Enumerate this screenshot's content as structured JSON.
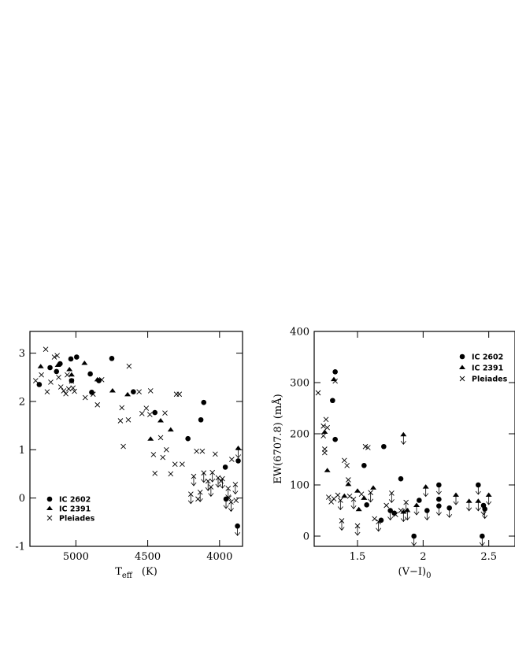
{
  "chart_data": [
    {
      "type": "scatter",
      "title": "",
      "xlabel": "T",
      "xlabel_sub": "eff",
      "xlabel_unit": "(K)",
      "ylabel": "",
      "xlim": [
        5320,
        3840
      ],
      "ylim": [
        -1,
        3.45
      ],
      "xticks": [
        5000,
        4500,
        4000
      ],
      "yticks": [
        -1,
        0,
        1,
        2,
        3
      ],
      "grid": false,
      "legend_position": "lower-left",
      "series": [
        {
          "name": "IC 2602",
          "marker": "circle",
          "points": [
            [
              5255,
              2.35
            ],
            [
              5180,
              2.7
            ],
            [
              5135,
              2.62
            ],
            [
              5110,
              2.78
            ],
            [
              5035,
              2.88
            ],
            [
              4995,
              2.92
            ],
            [
              5030,
              2.43
            ],
            [
              4900,
              2.57
            ],
            [
              4890,
              2.19
            ],
            [
              4840,
              2.43
            ],
            [
              4750,
              2.89
            ],
            [
              4600,
              2.2
            ],
            [
              4450,
              1.77
            ],
            [
              4220,
              1.23
            ],
            [
              4130,
              1.62
            ],
            [
              4110,
              1.98
            ],
            [
              3960,
              0.64
            ],
            [
              3955,
              -0.02
            ],
            [
              3870,
              0.77
            ],
            [
              3875,
              -0.58
            ]
          ],
          "upper_limit": [
            false,
            false,
            false,
            false,
            false,
            false,
            false,
            false,
            false,
            false,
            false,
            false,
            false,
            false,
            false,
            false,
            false,
            true,
            false,
            true
          ]
        },
        {
          "name": "IC 2391",
          "marker": "triangle",
          "points": [
            [
              5245,
              2.72
            ],
            [
              5125,
              2.75
            ],
            [
              5045,
              2.66
            ],
            [
              5030,
              2.55
            ],
            [
              4940,
              2.79
            ],
            [
              4850,
              2.45
            ],
            [
              4745,
              2.22
            ],
            [
              4640,
              2.14
            ],
            [
              4480,
              1.22
            ],
            [
              4410,
              1.6
            ],
            [
              4340,
              1.41
            ],
            [
              3870,
              1.03
            ]
          ],
          "upper_limit": [
            false,
            false,
            false,
            false,
            false,
            false,
            false,
            false,
            false,
            false,
            false,
            true
          ]
        },
        {
          "name": "Pleiades",
          "marker": "cross",
          "points": [
            [
              5280,
              2.43
            ],
            [
              5240,
              2.55
            ],
            [
              5210,
              3.08
            ],
            [
              5200,
              2.2
            ],
            [
              5175,
              2.4
            ],
            [
              5150,
              2.92
            ],
            [
              5130,
              2.95
            ],
            [
              5120,
              2.5
            ],
            [
              5105,
              2.3
            ],
            [
              5085,
              2.22
            ],
            [
              5070,
              2.16
            ],
            [
              5060,
              2.55
            ],
            [
              5050,
              2.26
            ],
            [
              5030,
              2.42
            ],
            [
              5020,
              2.28
            ],
            [
              5010,
              2.21
            ],
            [
              4935,
              2.08
            ],
            [
              4880,
              2.15
            ],
            [
              4850,
              1.93
            ],
            [
              4820,
              2.45
            ],
            [
              4680,
              1.87
            ],
            [
              4670,
              1.07
            ],
            [
              4635,
              1.62
            ],
            [
              4690,
              1.6
            ],
            [
              4630,
              2.73
            ],
            [
              4560,
              2.2
            ],
            [
              4540,
              1.75
            ],
            [
              4510,
              1.86
            ],
            [
              4485,
              1.73
            ],
            [
              4480,
              2.22
            ],
            [
              4460,
              0.9
            ],
            [
              4450,
              0.51
            ],
            [
              4410,
              1.25
            ],
            [
              4395,
              0.84
            ],
            [
              4380,
              1.76
            ],
            [
              4370,
              1.0
            ],
            [
              4340,
              0.5
            ],
            [
              4310,
              0.7
            ],
            [
              4300,
              2.15
            ],
            [
              4280,
              2.15
            ],
            [
              4260,
              0.7
            ],
            [
              4200,
              0.08
            ],
            [
              4180,
              0.45
            ],
            [
              4160,
              0.97
            ],
            [
              4150,
              -0.02
            ],
            [
              4135,
              0.12
            ],
            [
              4120,
              0.97
            ],
            [
              4110,
              0.52
            ],
            [
              4080,
              0.35
            ],
            [
              4060,
              0.23
            ],
            [
              4050,
              0.53
            ],
            [
              4030,
              0.91
            ],
            [
              4010,
              0.42
            ],
            [
              3980,
              0.4
            ],
            [
              3940,
              0.2
            ],
            [
              3990,
              0.35
            ],
            [
              3935,
              0.0
            ],
            [
              3920,
              -0.08
            ],
            [
              3915,
              0.8
            ],
            [
              3890,
              0.28
            ],
            [
              3885,
              -0.05
            ]
          ],
          "upper_limit": [
            false,
            false,
            false,
            false,
            false,
            false,
            false,
            false,
            false,
            false,
            false,
            false,
            false,
            false,
            false,
            false,
            false,
            false,
            false,
            false,
            false,
            false,
            false,
            false,
            false,
            false,
            false,
            false,
            false,
            false,
            false,
            false,
            false,
            false,
            false,
            false,
            false,
            false,
            false,
            false,
            false,
            true,
            true,
            false,
            false,
            true,
            false,
            true,
            true,
            true,
            true,
            false,
            true,
            true,
            true,
            false,
            false,
            true,
            false,
            true,
            false
          ]
        }
      ]
    },
    {
      "type": "scatter",
      "title": "",
      "xlabel": "(V−I)",
      "xlabel_sub": "0",
      "ylabel": "EW(6707.8)  (mÅ)",
      "xlim": [
        1.17,
        2.7
      ],
      "ylim": [
        -20,
        400
      ],
      "xticks": [
        1.5,
        2,
        2.5
      ],
      "xtick_labels": [
        "1.5",
        "2",
        "2.5"
      ],
      "yticks": [
        0,
        100,
        200,
        300,
        400
      ],
      "grid": false,
      "legend_position": "top-right",
      "series": [
        {
          "name": "IC 2602",
          "marker": "circle",
          "points": [
            [
              1.33,
              321
            ],
            [
              1.33,
              189
            ],
            [
              1.31,
              265
            ],
            [
              1.55,
              138
            ],
            [
              1.57,
              61
            ],
            [
              1.68,
              31
            ],
            [
              1.7,
              175
            ],
            [
              1.75,
              50
            ],
            [
              1.78,
              45
            ],
            [
              1.83,
              112
            ],
            [
              1.93,
              0
            ],
            [
              1.97,
              70
            ],
            [
              2.03,
              50
            ],
            [
              2.12,
              100
            ],
            [
              2.12,
              72
            ],
            [
              2.12,
              59
            ],
            [
              2.2,
              55
            ],
            [
              2.42,
              100
            ],
            [
              2.45,
              0
            ],
            [
              2.46,
              60
            ],
            [
              2.47,
              53
            ]
          ],
          "upper_limit": [
            false,
            false,
            false,
            false,
            false,
            false,
            false,
            true,
            false,
            false,
            true,
            false,
            true,
            true,
            false,
            true,
            true,
            true,
            true,
            true,
            true
          ]
        },
        {
          "name": "IC 2391",
          "marker": "triangle",
          "points": [
            [
              1.25,
              203
            ],
            [
              1.27,
              128
            ],
            [
              1.32,
              306
            ],
            [
              1.4,
              78
            ],
            [
              1.43,
              101
            ],
            [
              1.5,
              88
            ],
            [
              1.51,
              52
            ],
            [
              1.55,
              74
            ],
            [
              1.62,
              94
            ],
            [
              1.85,
              198
            ],
            [
              1.85,
              47
            ],
            [
              1.88,
              50
            ],
            [
              1.95,
              60
            ],
            [
              2.02,
              96
            ],
            [
              2.25,
              80
            ],
            [
              2.35,
              68
            ],
            [
              2.42,
              68
            ],
            [
              2.5,
              80
            ]
          ],
          "upper_limit": [
            false,
            false,
            false,
            false,
            false,
            false,
            false,
            false,
            false,
            true,
            true,
            true,
            true,
            true,
            true,
            true,
            true,
            true
          ]
        },
        {
          "name": "Pleiades",
          "marker": "cross",
          "points": [
            [
              1.2,
              280
            ],
            [
              1.24,
              215
            ],
            [
              1.26,
              228
            ],
            [
              1.24,
              196
            ],
            [
              1.25,
              170
            ],
            [
              1.27,
              212
            ],
            [
              1.25,
              163
            ],
            [
              1.28,
              76
            ],
            [
              1.3,
              67
            ],
            [
              1.32,
              73
            ],
            [
              1.33,
              303
            ],
            [
              1.35,
              80
            ],
            [
              1.37,
              70
            ],
            [
              1.38,
              30
            ],
            [
              1.4,
              148
            ],
            [
              1.42,
              138
            ],
            [
              1.43,
              110
            ],
            [
              1.44,
              78
            ],
            [
              1.47,
              72
            ],
            [
              1.5,
              20
            ],
            [
              1.53,
              82
            ],
            [
              1.56,
              175
            ],
            [
              1.58,
              173
            ],
            [
              1.6,
              85
            ],
            [
              1.63,
              34
            ],
            [
              1.66,
              28
            ],
            [
              1.72,
              60
            ],
            [
              1.76,
              84
            ],
            [
              1.79,
              42
            ],
            [
              1.83,
              50
            ],
            [
              1.87,
              66
            ]
          ],
          "upper_limit": [
            false,
            false,
            false,
            false,
            false,
            false,
            false,
            false,
            false,
            false,
            false,
            false,
            true,
            true,
            false,
            false,
            false,
            false,
            true,
            true,
            false,
            false,
            false,
            true,
            false,
            true,
            false,
            true,
            false,
            false,
            true
          ]
        }
      ]
    }
  ]
}
